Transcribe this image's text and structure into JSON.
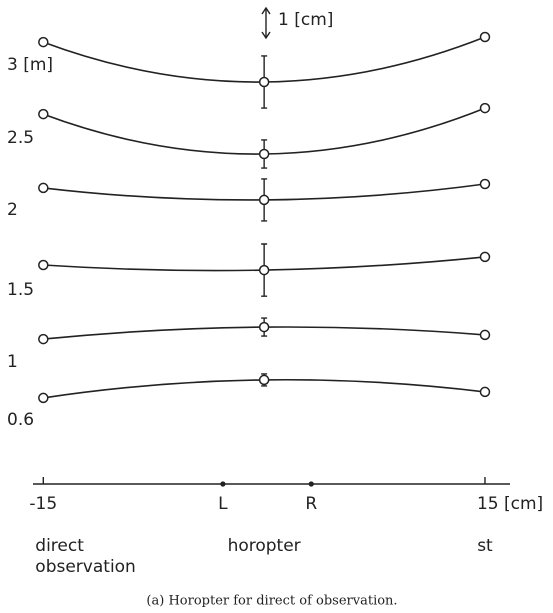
{
  "chart_data": {
    "type": "line",
    "caption": "(a) Horopter for direct of observation.",
    "scale_bar": {
      "value": 1,
      "label": "1 [cm]"
    },
    "x": [
      -15,
      0,
      15
    ],
    "xlim": [
      -15.7,
      16.7
    ],
    "xticks": [
      -15,
      {
        "value": 15,
        "label": "15 [cm]"
      }
    ],
    "ylim": [
      0,
      16
    ],
    "color": "#222222",
    "series": [
      {
        "name": "3 [m]",
        "values": [
          14.73,
          13.4,
          14.9
        ],
        "errors": [
          null,
          0.87,
          null
        ]
      },
      {
        "name": "2.5",
        "values": [
          12.33,
          11.0,
          12.53
        ],
        "errors": [
          null,
          0.47,
          null
        ]
      },
      {
        "name": "2",
        "values": [
          9.87,
          9.47,
          10.0
        ],
        "errors": [
          null,
          0.7,
          null
        ]
      },
      {
        "name": "1.5",
        "values": [
          7.3,
          7.13,
          7.57
        ],
        "errors": [
          null,
          0.87,
          null
        ]
      },
      {
        "name": "1",
        "values": [
          4.83,
          5.23,
          4.97
        ],
        "errors": [
          null,
          0.3,
          null
        ]
      },
      {
        "name": "0.6",
        "values": [
          2.87,
          3.47,
          3.07
        ],
        "errors": [
          null,
          0.2,
          null
        ]
      }
    ],
    "axis_points": [
      {
        "name": "L",
        "x": -2.8
      },
      {
        "name": "R",
        "x": 3.2
      }
    ],
    "bottom_labels": [
      [
        "direct",
        "observation"
      ],
      [
        "horopter"
      ],
      [
        "st"
      ]
    ]
  }
}
